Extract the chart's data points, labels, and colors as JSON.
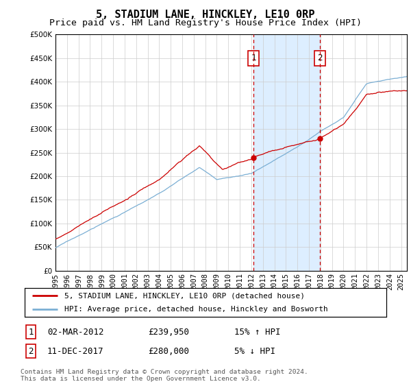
{
  "title": "5, STADIUM LANE, HINCKLEY, LE10 0RP",
  "subtitle": "Price paid vs. HM Land Registry's House Price Index (HPI)",
  "ylim": [
    0,
    500000
  ],
  "yticks": [
    0,
    50000,
    100000,
    150000,
    200000,
    250000,
    300000,
    350000,
    400000,
    450000,
    500000
  ],
  "ytick_labels": [
    "£0",
    "£50K",
    "£100K",
    "£150K",
    "£200K",
    "£250K",
    "£300K",
    "£350K",
    "£400K",
    "£450K",
    "£500K"
  ],
  "xlim": [
    1995,
    2025.5
  ],
  "purchase1_date": "02-MAR-2012",
  "purchase1_price": 239950,
  "purchase1_hpi_pct": "15% ↑ HPI",
  "purchase2_date": "11-DEC-2017",
  "purchase2_price": 280000,
  "purchase2_hpi_pct": "5% ↓ HPI",
  "purchase1_x": 2012.17,
  "purchase2_x": 2017.95,
  "red_line_color": "#cc0000",
  "blue_line_color": "#7bafd4",
  "shade_color": "#ddeeff",
  "grid_color": "#cccccc",
  "background_color": "#ffffff",
  "legend_label_red": "5, STADIUM LANE, HINCKLEY, LE10 0RP (detached house)",
  "legend_label_blue": "HPI: Average price, detached house, Hinckley and Bosworth",
  "footer_text": "Contains HM Land Registry data © Crown copyright and database right 2024.\nThis data is licensed under the Open Government Licence v3.0.",
  "title_fontsize": 11,
  "subtitle_fontsize": 9.5,
  "tick_fontsize": 7.5
}
